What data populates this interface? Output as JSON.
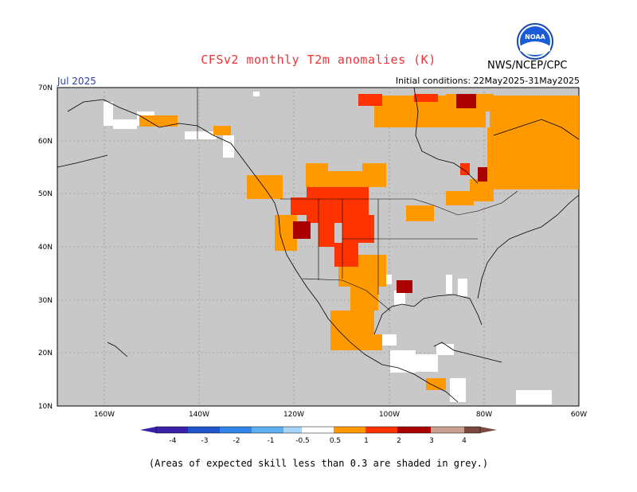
{
  "header": {
    "title": "CFSv2 monthly T2m anomalies (K)",
    "org": "NWS/NCEP/CPC",
    "month": "Jul 2025",
    "initial_conditions": "Initial conditions: 22May2025-31May2025"
  },
  "logo": {
    "text": "NOAA"
  },
  "map": {
    "lat_labels": [
      "70N",
      "60N",
      "50N",
      "40N",
      "30N",
      "20N",
      "10N"
    ],
    "lon_labels": [
      "160W",
      "140W",
      "120W",
      "100W",
      "80W",
      "60W"
    ],
    "background_color": "#c8c8c8"
  },
  "colorbar": {
    "labels": [
      "-4",
      "-3",
      "-2",
      "-1",
      "-0.5",
      "0.5",
      "1",
      "2",
      "3",
      "4"
    ],
    "colors": [
      "#3a1fa8",
      "#1f55cc",
      "#2f86e8",
      "#5fb0f0",
      "#a8d4f8",
      "#ffffff",
      "#ff9900",
      "#ff3300",
      "#aa0000",
      "#c9a090",
      "#7a4a40"
    ]
  },
  "footer": {
    "note": "(Areas of expected skill less than 0.3 are shaded in grey.)"
  }
}
